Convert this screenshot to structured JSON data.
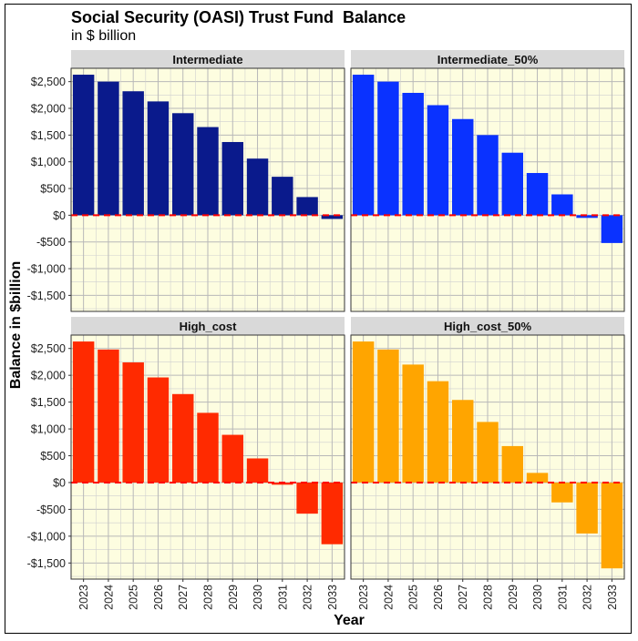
{
  "title": "Social Security (OASI) Trust Fund  Balance",
  "subtitle": "in $ billion",
  "chart_data": {
    "type": "bar",
    "title": "Social Security (OASI) Trust Fund  Balance",
    "subtitle": "in $ billion",
    "xlabel": "Year",
    "ylabel": "Balance in $billion",
    "ylim": [
      -1800,
      2750
    ],
    "ytick_values": [
      -1500,
      -1000,
      -500,
      0,
      500,
      1000,
      1500,
      2000,
      2500
    ],
    "ytick_labels": [
      "-$1,500",
      "-$1,000",
      "-$500",
      "$0",
      "$500",
      "$1,000",
      "$1,500",
      "$2,000",
      "$2,500"
    ],
    "categories": [
      "2023",
      "2024",
      "2025",
      "2026",
      "2027",
      "2028",
      "2029",
      "2030",
      "2031",
      "2032",
      "2033"
    ],
    "grid": true,
    "reference_line": {
      "value": 0,
      "style": "dashed",
      "color": "#ff0000"
    },
    "panel_background": "#fdfde0",
    "strip_background": "#d9d9d9",
    "panels": [
      {
        "name": "Intermediate",
        "color": "#0a1a8c",
        "values": [
          2630,
          2500,
          2320,
          2130,
          1910,
          1650,
          1370,
          1060,
          720,
          340,
          -70
        ]
      },
      {
        "name": "Intermediate_50%",
        "color": "#0a32ff",
        "values": [
          2630,
          2500,
          2290,
          2060,
          1800,
          1500,
          1170,
          790,
          390,
          -50,
          -520
        ]
      },
      {
        "name": "High_cost",
        "color": "#ff2a00",
        "values": [
          2630,
          2480,
          2240,
          1960,
          1650,
          1300,
          890,
          450,
          -40,
          -580,
          -1150
        ]
      },
      {
        "name": "High_cost_50%",
        "color": "#ffa500",
        "values": [
          2630,
          2480,
          2200,
          1890,
          1540,
          1130,
          680,
          180,
          -370,
          -950,
          -1600
        ]
      }
    ]
  }
}
